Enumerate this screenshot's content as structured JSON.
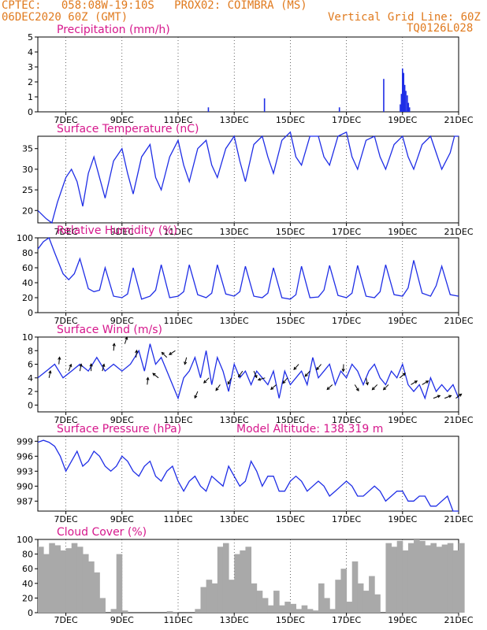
{
  "header": {
    "line1": "CPTEC:   058:08W-19:10S   PROX02: COIMBRA (MS)",
    "line2_left": "06DEC2020 60Z (GMT)",
    "line2_right": "Vertical Grid Line: 60Z",
    "code": "TQ0126L028",
    "model_altitude": "Model Altitude: 138.319 m"
  },
  "colors": {
    "header": "#e07a1e",
    "title": "#d6178c",
    "series": "#1f2ee6",
    "cloud": "#a9a9a9",
    "wind_arrow": "#000000"
  },
  "chart_data": [
    {
      "type": "bar",
      "title": "Precipitation (mm/h)",
      "x_ticks": [
        "7DEC",
        "9DEC",
        "11DEC",
        "13DEC",
        "15DEC",
        "17DEC",
        "19DEC",
        "21DEC"
      ],
      "ylim": [
        0,
        5
      ],
      "y_ticks": [
        0,
        1,
        2,
        3,
        4,
        5
      ],
      "x_days": [
        12.08,
        14.08,
        16.75,
        18.33,
        18.92,
        18.96,
        19.0,
        19.04,
        19.08,
        19.12,
        19.17,
        19.21,
        19.25
      ],
      "values": [
        0.3,
        0.9,
        0.3,
        2.2,
        0.5,
        1.2,
        2.9,
        2.6,
        1.8,
        1.4,
        1.1,
        0.6,
        0.3
      ]
    },
    {
      "type": "line",
      "title": "Surface Temperature (nC)",
      "x_ticks": [
        "7DEC",
        "9DEC",
        "11DEC",
        "13DEC",
        "15DEC",
        "17DEC",
        "19DEC",
        "21DEC"
      ],
      "ylim": [
        17,
        38
      ],
      "y_ticks": [
        20,
        25,
        30,
        35
      ],
      "x_days": [
        6.0,
        6.3,
        6.5,
        6.7,
        7.0,
        7.2,
        7.4,
        7.6,
        7.8,
        8.0,
        8.2,
        8.4,
        8.7,
        9.0,
        9.2,
        9.4,
        9.7,
        10.0,
        10.2,
        10.4,
        10.7,
        11.0,
        11.2,
        11.4,
        11.7,
        12.0,
        12.2,
        12.4,
        12.7,
        13.0,
        13.2,
        13.4,
        13.7,
        14.0,
        14.2,
        14.4,
        14.7,
        15.0,
        15.2,
        15.4,
        15.7,
        16.0,
        16.2,
        16.4,
        16.7,
        17.0,
        17.2,
        17.4,
        17.7,
        18.0,
        18.2,
        18.4,
        18.7,
        19.0,
        19.2,
        19.4,
        19.7,
        20.0,
        20.2,
        20.4,
        20.7,
        20.85,
        21.0
      ],
      "values": [
        20,
        18,
        17,
        22,
        28,
        30,
        27,
        21,
        29,
        33,
        28,
        23,
        32,
        35,
        29,
        24,
        33,
        36,
        28,
        25,
        33,
        37,
        31,
        27,
        35,
        37,
        31,
        28,
        35,
        38,
        32,
        27,
        36,
        38,
        33,
        29,
        37,
        39,
        33,
        31,
        38,
        38,
        33,
        31,
        38,
        39,
        33,
        30,
        37,
        38,
        33,
        30,
        36,
        38,
        33,
        30,
        36,
        38,
        34,
        30,
        34,
        38,
        38
      ]
    },
    {
      "type": "line",
      "title": "Relative Humidity (%)",
      "x_ticks": [
        "7DEC",
        "9DEC",
        "11DEC",
        "13DEC",
        "15DEC",
        "17DEC",
        "19DEC",
        "21DEC"
      ],
      "ylim": [
        0,
        100
      ],
      "y_ticks": [
        0,
        20,
        40,
        60,
        80,
        100
      ],
      "x_days": [
        6.0,
        6.2,
        6.4,
        6.6,
        6.9,
        7.1,
        7.3,
        7.5,
        7.8,
        8.0,
        8.2,
        8.4,
        8.7,
        9.0,
        9.2,
        9.4,
        9.7,
        10.0,
        10.2,
        10.4,
        10.7,
        11.0,
        11.2,
        11.4,
        11.7,
        12.0,
        12.2,
        12.4,
        12.7,
        13.0,
        13.2,
        13.4,
        13.7,
        14.0,
        14.2,
        14.4,
        14.7,
        15.0,
        15.2,
        15.4,
        15.7,
        16.0,
        16.2,
        16.4,
        16.7,
        17.0,
        17.2,
        17.4,
        17.7,
        18.0,
        18.2,
        18.4,
        18.7,
        19.0,
        19.2,
        19.4,
        19.7,
        20.0,
        20.2,
        20.4,
        20.7,
        21.0
      ],
      "values": [
        85,
        95,
        100,
        80,
        52,
        44,
        52,
        72,
        32,
        28,
        30,
        60,
        22,
        20,
        25,
        60,
        18,
        22,
        30,
        64,
        20,
        22,
        28,
        64,
        24,
        20,
        26,
        64,
        25,
        22,
        28,
        62,
        22,
        20,
        26,
        60,
        20,
        18,
        24,
        62,
        20,
        21,
        30,
        63,
        23,
        20,
        26,
        63,
        22,
        20,
        28,
        64,
        24,
        22,
        33,
        70,
        26,
        22,
        36,
        62,
        24,
        22
      ]
    },
    {
      "type": "line",
      "title": "Surface Wind (m/s)",
      "x_ticks": [
        "7DEC",
        "9DEC",
        "11DEC",
        "13DEC",
        "15DEC",
        "17DEC",
        "19DEC",
        "21DEC"
      ],
      "ylim": [
        -1,
        10
      ],
      "y_ticks": [
        0,
        2,
        4,
        6,
        8,
        10
      ],
      "x_days": [
        6.0,
        6.3,
        6.6,
        6.9,
        7.2,
        7.5,
        7.8,
        8.1,
        8.4,
        8.7,
        9.0,
        9.3,
        9.6,
        9.8,
        10.0,
        10.2,
        10.4,
        10.6,
        10.8,
        11.0,
        11.2,
        11.4,
        11.6,
        11.8,
        12.0,
        12.2,
        12.4,
        12.6,
        12.8,
        13.0,
        13.2,
        13.4,
        13.6,
        13.8,
        14.0,
        14.2,
        14.4,
        14.6,
        14.8,
        15.0,
        15.2,
        15.4,
        15.6,
        15.8,
        16.0,
        16.2,
        16.4,
        16.6,
        16.8,
        17.0,
        17.2,
        17.4,
        17.6,
        17.8,
        18.0,
        18.2,
        18.4,
        18.6,
        18.8,
        19.0,
        19.2,
        19.4,
        19.6,
        19.8,
        20.0,
        20.2,
        20.4,
        20.6,
        20.8,
        21.0
      ],
      "values": [
        4,
        5,
        6,
        4,
        5,
        6,
        5,
        7,
        5,
        6,
        5,
        6,
        8,
        5,
        9,
        6,
        7,
        5,
        3,
        1,
        4,
        5,
        7,
        4,
        8,
        3,
        7,
        5,
        2,
        6,
        4,
        5,
        3,
        5,
        4,
        3,
        5,
        1,
        5,
        3,
        4,
        5,
        3,
        7,
        4,
        5,
        6,
        3,
        5,
        4,
        6,
        5,
        3,
        5,
        6,
        4,
        3,
        5,
        4,
        6,
        3,
        2,
        3,
        1,
        4,
        2,
        3,
        2,
        3,
        1
      ],
      "arrows": {
        "x_days": [
          6.4,
          6.75,
          7.1,
          7.5,
          7.9,
          8.3,
          8.7,
          9.1,
          9.5,
          9.9,
          10.3,
          10.6,
          10.9,
          11.3,
          11.7,
          12.1,
          12.5,
          12.9,
          13.3,
          13.7,
          14.1,
          14.5,
          14.9,
          15.3,
          15.7,
          16.1,
          16.5,
          16.9,
          17.3,
          17.7,
          18.1,
          18.5,
          18.9,
          19.3,
          19.7,
          20.1,
          20.5,
          20.9
        ],
        "u": [
          0.2,
          0.1,
          0.3,
          0.2,
          0.0,
          0.2,
          0.1,
          0.3,
          0.1,
          0.1,
          -0.5,
          -0.4,
          -0.6,
          -0.4,
          -0.8,
          -1.2,
          -0.8,
          -0.6,
          -0.5,
          0.3,
          -1.0,
          -0.8,
          -1.1,
          -0.9,
          -0.9,
          -1.0,
          -1.3,
          -0.1,
          0.8,
          0.3,
          -0.5,
          -0.3,
          0.6,
          0.5,
          0.5,
          0.5,
          0.5,
          0.4
        ],
        "v": [
          1.0,
          1.0,
          0.8,
          1.0,
          1.0,
          0.8,
          1.0,
          0.9,
          1.0,
          1.0,
          0.4,
          0.4,
          -0.4,
          -1.6,
          -1.8,
          -1.2,
          -1.1,
          -1.1,
          -0.7,
          -0.7,
          -0.3,
          -0.7,
          -1.3,
          -1.0,
          -1.0,
          -1.2,
          -1.2,
          -1.8,
          -1.3,
          -1.3,
          -0.5,
          -0.3,
          0.5,
          0.3,
          0.3,
          0.2,
          0.2,
          0.3
        ]
      }
    },
    {
      "type": "line",
      "title": "Surface Pressure (hPa)",
      "x_ticks": [
        "7DEC",
        "9DEC",
        "11DEC",
        "13DEC",
        "15DEC",
        "17DEC",
        "19DEC",
        "21DEC"
      ],
      "ylim": [
        985,
        1000
      ],
      "y_ticks": [
        987,
        990,
        993,
        996,
        999
      ],
      "x_days": [
        6.0,
        6.2,
        6.4,
        6.6,
        6.8,
        7.0,
        7.2,
        7.4,
        7.6,
        7.8,
        8.0,
        8.2,
        8.4,
        8.6,
        8.8,
        9.0,
        9.2,
        9.4,
        9.6,
        9.8,
        10.0,
        10.2,
        10.4,
        10.6,
        10.8,
        11.0,
        11.2,
        11.4,
        11.6,
        11.8,
        12.0,
        12.2,
        12.4,
        12.6,
        12.8,
        13.0,
        13.2,
        13.4,
        13.6,
        13.8,
        14.0,
        14.2,
        14.4,
        14.6,
        14.8,
        15.0,
        15.2,
        15.4,
        15.6,
        15.8,
        16.0,
        16.2,
        16.4,
        16.6,
        16.8,
        17.0,
        17.2,
        17.4,
        17.6,
        17.8,
        18.0,
        18.2,
        18.4,
        18.6,
        18.8,
        19.0,
        19.2,
        19.4,
        19.6,
        19.8,
        20.0,
        20.2,
        20.4,
        20.6,
        20.8,
        21.0
      ],
      "values": [
        998.8,
        999.2,
        998.8,
        998,
        996,
        993,
        995,
        997,
        994,
        995,
        997,
        996,
        994,
        993,
        994,
        996,
        995,
        993,
        992,
        994,
        995,
        992,
        991,
        993,
        994,
        991,
        989,
        991,
        992,
        990,
        989,
        992,
        991,
        990,
        994,
        992,
        990,
        991,
        995,
        993,
        990,
        992,
        992,
        989,
        989,
        991,
        992,
        991,
        989,
        990,
        991,
        990,
        988,
        989,
        990,
        991,
        990,
        988,
        988,
        989,
        990,
        989,
        987,
        988,
        989,
        989,
        987,
        987,
        988,
        988,
        986,
        986,
        987,
        988,
        985,
        985
      ]
    },
    {
      "type": "bar",
      "title": "Cloud Cover (%)",
      "x_ticks": [
        "7DEC",
        "9DEC",
        "11DEC",
        "13DEC",
        "15DEC",
        "17DEC",
        "19DEC",
        "21DEC"
      ],
      "ylim": [
        0,
        100
      ],
      "y_ticks": [
        0,
        20,
        40,
        60,
        80,
        100
      ],
      "x_days": [
        6.0,
        6.2,
        6.4,
        6.6,
        6.8,
        7.0,
        7.2,
        7.4,
        7.6,
        7.8,
        8.0,
        8.2,
        8.4,
        8.6,
        8.8,
        9.0,
        9.2,
        9.4,
        9.6,
        9.8,
        10.0,
        10.2,
        10.4,
        10.6,
        10.8,
        11.0,
        11.2,
        11.4,
        11.6,
        11.8,
        12.0,
        12.2,
        12.4,
        12.6,
        12.8,
        13.0,
        13.2,
        13.4,
        13.6,
        13.8,
        14.0,
        14.2,
        14.4,
        14.6,
        14.8,
        15.0,
        15.2,
        15.4,
        15.6,
        15.8,
        16.0,
        16.2,
        16.4,
        16.6,
        16.8,
        17.0,
        17.2,
        17.4,
        17.6,
        17.8,
        18.0,
        18.2,
        18.4,
        18.6,
        18.8,
        19.0,
        19.2,
        19.4,
        19.6,
        19.8,
        20.0,
        20.2,
        20.4,
        20.6,
        20.8,
        21.0
      ],
      "values": [
        90,
        80,
        95,
        92,
        85,
        88,
        95,
        90,
        80,
        70,
        55,
        20,
        0,
        5,
        80,
        3,
        0,
        0,
        0,
        0,
        0,
        0,
        0,
        2,
        1,
        0,
        0,
        0,
        5,
        35,
        45,
        40,
        90,
        95,
        45,
        80,
        85,
        90,
        40,
        30,
        20,
        10,
        30,
        10,
        15,
        12,
        5,
        10,
        5,
        3,
        40,
        20,
        5,
        45,
        60,
        15,
        70,
        40,
        30,
        50,
        25,
        0,
        95,
        90,
        98,
        85,
        95,
        100,
        98,
        92,
        95,
        90,
        93,
        95,
        85,
        95
      ]
    }
  ]
}
